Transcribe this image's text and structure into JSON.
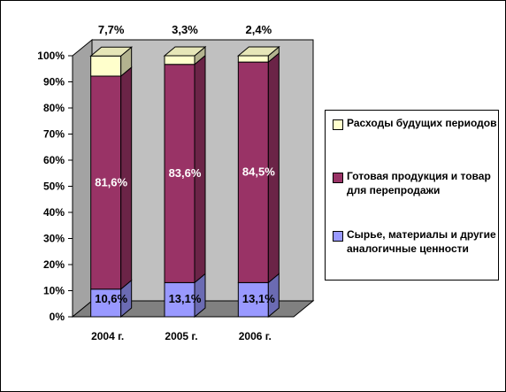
{
  "chart_data": {
    "type": "bar",
    "stacked": true,
    "three_d": true,
    "categories": [
      "2004 г.",
      "2005 г.",
      "2006 г."
    ],
    "y_ticks": [
      "0%",
      "10%",
      "20%",
      "30%",
      "40%",
      "50%",
      "60%",
      "70%",
      "80%",
      "90%",
      "100%"
    ],
    "ylim": [
      0,
      100
    ],
    "grid": false,
    "legend_position": "right",
    "series": [
      {
        "name": "Сырье, материалы и другие аналогичные ценности",
        "values": [
          10.6,
          13.1,
          13.1
        ],
        "labels": [
          "10,6%",
          "13,1%",
          "13,1%"
        ],
        "color": "#9999ff"
      },
      {
        "name": "Готовая продукция и товар для перепродажи",
        "values": [
          81.6,
          83.6,
          84.5
        ],
        "labels": [
          "81,6%",
          "83,6%",
          "84,5%"
        ],
        "color": "#993366"
      },
      {
        "name": "Расходы будущих периодов",
        "values": [
          7.7,
          3.3,
          2.4
        ],
        "labels": [
          "7,7%",
          "3,3%",
          "2,4%"
        ],
        "color": "#ffffcc"
      }
    ],
    "colors": {
      "wall": "#c0c0c0",
      "floor": "#808080"
    }
  }
}
